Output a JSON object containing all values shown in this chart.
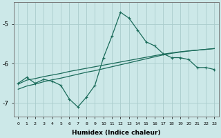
{
  "xlabel": "Humidex (Indice chaleur)",
  "background_color": "#cce8e8",
  "grid_color": "#aacccc",
  "line_color": "#1a6b5a",
  "x_values": [
    0,
    1,
    2,
    3,
    4,
    5,
    6,
    7,
    8,
    9,
    10,
    11,
    12,
    13,
    14,
    15,
    16,
    17,
    18,
    19,
    20,
    21,
    22,
    23
  ],
  "y_main": [
    -6.5,
    -6.35,
    -6.5,
    -6.4,
    -6.45,
    -6.55,
    -6.9,
    -7.1,
    -6.85,
    -6.55,
    -5.85,
    -5.3,
    -4.7,
    -4.85,
    -5.15,
    -5.45,
    -5.55,
    -5.75,
    -5.85,
    -5.85,
    -5.9,
    -6.1,
    -6.1,
    -6.15
  ],
  "y_line2": [
    -6.52,
    -6.42,
    -6.38,
    -6.33,
    -6.29,
    -6.25,
    -6.2,
    -6.16,
    -6.12,
    -6.08,
    -6.04,
    -6.0,
    -5.96,
    -5.92,
    -5.88,
    -5.84,
    -5.8,
    -5.76,
    -5.73,
    -5.7,
    -5.68,
    -5.66,
    -5.64,
    -5.62
  ],
  "y_line3": [
    -6.65,
    -6.57,
    -6.52,
    -6.46,
    -6.41,
    -6.37,
    -6.32,
    -6.27,
    -6.22,
    -6.18,
    -6.13,
    -6.08,
    -6.03,
    -5.98,
    -5.93,
    -5.88,
    -5.83,
    -5.78,
    -5.74,
    -5.71,
    -5.68,
    -5.66,
    -5.64,
    -5.62
  ],
  "ylim": [
    -7.35,
    -4.45
  ],
  "yticks": [
    -7,
    -6,
    -5
  ],
  "xlim": [
    -0.5,
    23.5
  ],
  "xtick_fontsize": 4.5,
  "ytick_fontsize": 6.5,
  "xlabel_fontsize": 6.5
}
